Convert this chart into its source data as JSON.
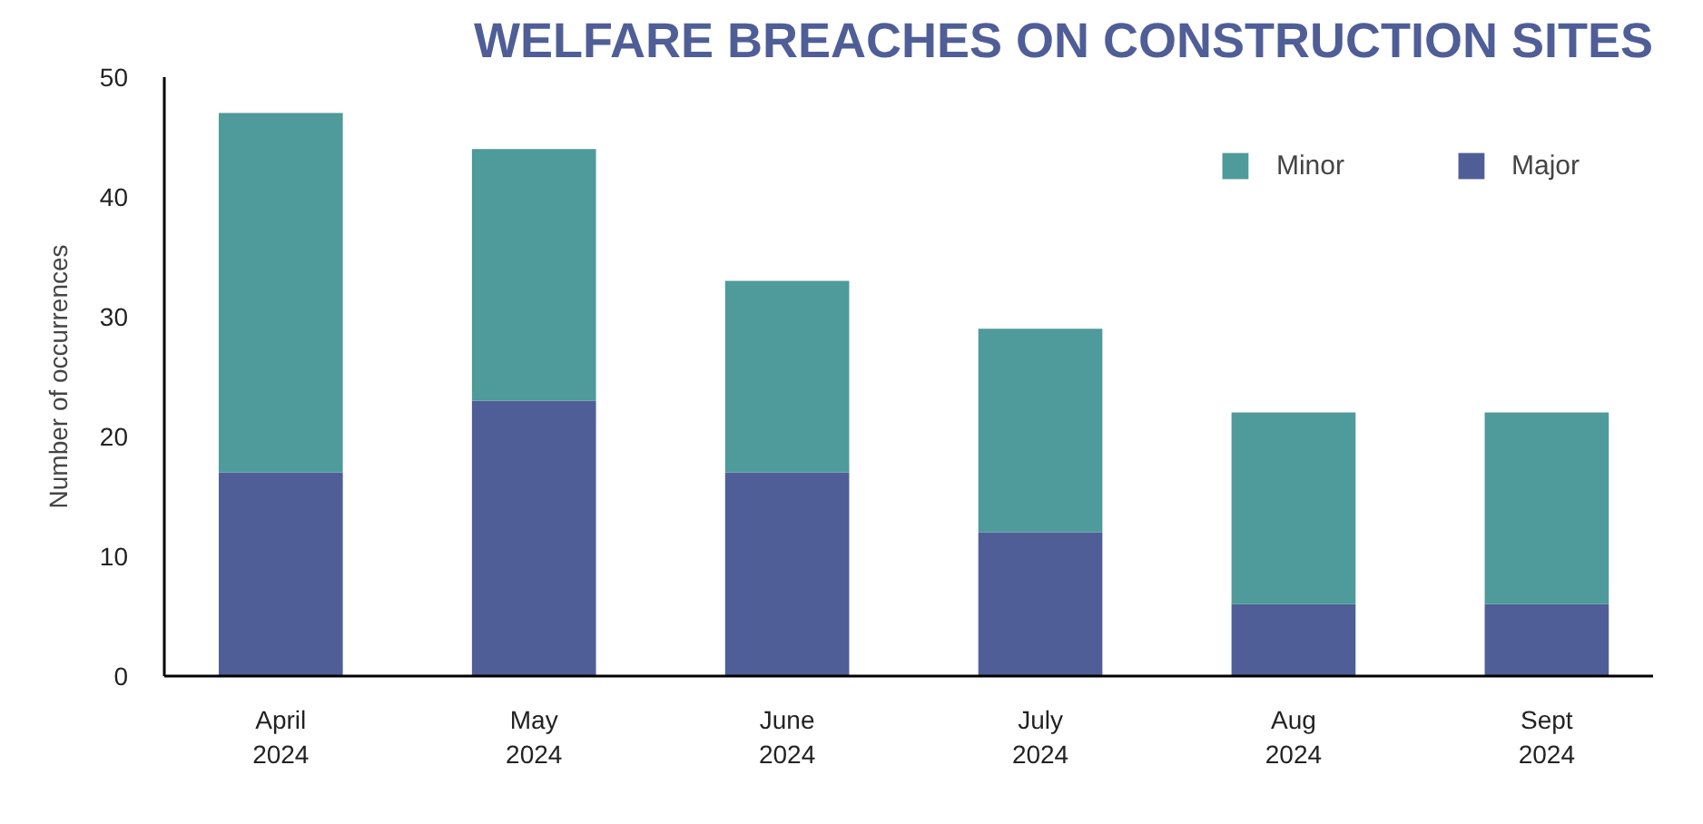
{
  "chart_data": {
    "type": "bar",
    "title": "WELFARE BREACHES ON CONSTRUCTION SITES",
    "ylabel": "Number of occurrences",
    "categories": [
      "April\n2024",
      "May\n2024",
      "June\n2024",
      "July\n2024",
      "Aug\n2024",
      "Sept\n2024"
    ],
    "stacked": true,
    "ylim": [
      0,
      50
    ],
    "yticks": [
      0,
      10,
      20,
      30,
      40,
      50
    ],
    "grid": false,
    "legend": "top right",
    "series": [
      {
        "name": "Major",
        "color": "#4f5e97",
        "values": [
          17,
          23,
          17,
          12,
          6,
          6
        ]
      },
      {
        "name": "Minor",
        "color": "#4f9a9a",
        "values": [
          30,
          21,
          16,
          17,
          16,
          16
        ]
      }
    ]
  }
}
